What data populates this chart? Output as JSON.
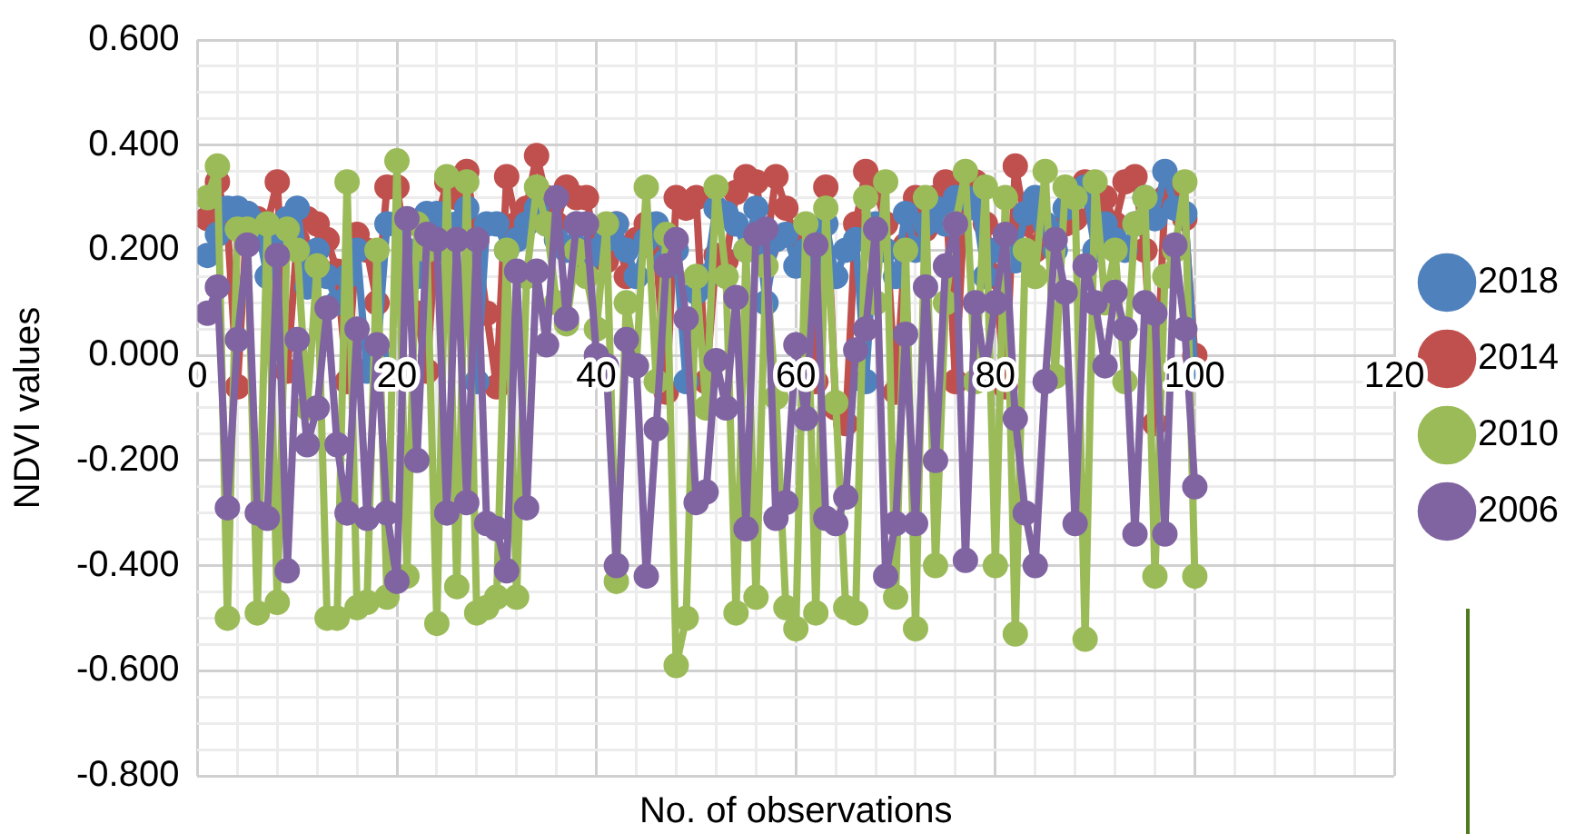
{
  "chart_data": {
    "type": "line",
    "xlabel": "No. of observations",
    "ylabel": "NDVI values",
    "x": [
      1,
      2,
      3,
      4,
      5,
      6,
      7,
      8,
      9,
      10,
      11,
      12,
      13,
      14,
      15,
      16,
      17,
      18,
      19,
      20,
      21,
      22,
      23,
      24,
      25,
      26,
      27,
      28,
      29,
      30,
      31,
      32,
      33,
      34,
      35,
      36,
      37,
      38,
      39,
      40,
      41,
      42,
      43,
      44,
      45,
      46,
      47,
      48,
      49,
      50,
      51,
      52,
      53,
      54,
      55,
      56,
      57,
      58,
      59,
      60,
      61,
      62,
      63,
      64,
      65,
      66,
      67,
      68,
      69,
      70,
      71,
      72,
      73,
      74,
      75,
      76,
      77,
      78,
      79,
      80,
      81,
      82,
      83,
      84,
      85,
      86,
      87,
      88,
      89,
      90,
      91,
      92,
      93,
      94,
      95,
      96,
      97,
      98,
      99,
      100
    ],
    "series": [
      {
        "name": "2018",
        "color": "#4f81bd",
        "values": [
          0.19,
          0.23,
          0.28,
          0.28,
          0.27,
          0.25,
          0.15,
          0.21,
          0.26,
          0.28,
          0.13,
          0.2,
          0.15,
          0.1,
          0.15,
          0.2,
          -0.03,
          0,
          0.25,
          0.25,
          0.2,
          0.15,
          0.27,
          0.27,
          0.2,
          0.25,
          0.28,
          -0.05,
          0.25,
          0.25,
          0.2,
          0.22,
          0.25,
          0.28,
          0.25,
          0.22,
          0.2,
          0.25,
          0.18,
          0.2,
          0.22,
          0.25,
          0.2,
          0.15,
          0.22,
          0.25,
          0.18,
          0.2,
          -0.05,
          0.12,
          0.15,
          0.28,
          0.27,
          0.25,
          0.2,
          0.28,
          0.1,
          0.22,
          0.23,
          0.17,
          0.2,
          0.17,
          0.25,
          0.15,
          0.2,
          0.22,
          -0.05,
          0.25,
          0.2,
          0.15,
          0.27,
          0.2,
          0.25,
          0.28,
          0.25,
          0.3,
          0.3,
          0.28,
          0.15,
          0.2,
          0.2,
          0.18,
          0.27,
          0.3,
          0.25,
          0.2,
          0.28,
          0.3,
          0.32,
          0.2,
          0.25,
          0.22,
          0.2,
          0.25,
          0.3,
          0.26,
          0.35,
          0.28,
          0.27,
          -0.03
        ]
      },
      {
        "name": "2014",
        "color": "#c0504d",
        "values": [
          0.26,
          0.33,
          0.25,
          -0.06,
          0.27,
          0.26,
          0.25,
          0.33,
          -0.03,
          0.22,
          0.26,
          0.25,
          0.22,
          0.16,
          -0.05,
          0.23,
          0.2,
          0.1,
          0.32,
          0.32,
          0.19,
          0.08,
          -0.03,
          0.25,
          0.33,
          0.3,
          0.35,
          0.22,
          0.08,
          -0.06,
          0.34,
          0.25,
          0.28,
          0.38,
          0.3,
          0.25,
          0.32,
          0.3,
          0.3,
          0.2,
          0.18,
          0.25,
          0.15,
          0.22,
          0.25,
          0.2,
          -0.07,
          0.3,
          0.28,
          0.3,
          -0.05,
          0.19,
          0.18,
          0.31,
          0.34,
          0.33,
          0.2,
          0.34,
          0.28,
          0.22,
          0.23,
          -0.05,
          0.32,
          -0.1,
          -0.13,
          0.25,
          0.35,
          0.32,
          0.25,
          -0.07,
          0.21,
          0.3,
          0.24,
          0.3,
          0.33,
          -0.05,
          0.32,
          0.33,
          0.25,
          0.15,
          -0.06,
          0.36,
          0.25,
          0.2,
          0.22,
          0.24,
          0.25,
          0.26,
          0.33,
          0.27,
          0.3,
          0.25,
          0.33,
          0.34,
          0.2,
          -0.13,
          0.3,
          0.32,
          0.26,
          0
        ]
      },
      {
        "name": "2010",
        "color": "#9bbb59",
        "values": [
          0.3,
          0.36,
          -0.5,
          0.24,
          0.24,
          -0.49,
          0.25,
          -0.47,
          0.24,
          0.2,
          -0.1,
          0.17,
          -0.5,
          -0.5,
          0.33,
          -0.48,
          -0.47,
          0.2,
          -0.46,
          0.37,
          -0.42,
          0.25,
          0.2,
          -0.51,
          0.34,
          -0.44,
          0.33,
          -0.49,
          -0.48,
          -0.46,
          0.2,
          -0.46,
          0.15,
          0.32,
          0.25,
          0.1,
          0.06,
          0.2,
          0.15,
          0.05,
          0.25,
          -0.43,
          0.1,
          -0.02,
          0.32,
          -0.05,
          0.23,
          -0.59,
          -0.5,
          0.15,
          -0.1,
          0.32,
          0.15,
          -0.49,
          0.2,
          -0.46,
          0.17,
          -0.08,
          -0.48,
          -0.52,
          0.25,
          -0.49,
          0.28,
          -0.09,
          -0.48,
          -0.49,
          0.3,
          0.1,
          0.33,
          -0.46,
          0.2,
          -0.52,
          0.3,
          -0.4,
          0.1,
          0.25,
          0.35,
          -0.05,
          0.32,
          -0.4,
          0.3,
          -0.53,
          0.2,
          0.15,
          0.35,
          -0.04,
          0.32,
          0.3,
          -0.54,
          0.33,
          0.1,
          0.2,
          -0.05,
          0.25,
          0.3,
          -0.42,
          0.15,
          0.2,
          0.33,
          -0.42
        ]
      },
      {
        "name": "2006",
        "color": "#8064a2",
        "values": [
          0.08,
          0.13,
          -0.29,
          0.03,
          0.21,
          -0.3,
          -0.31,
          0.19,
          -0.41,
          0.03,
          -0.17,
          -0.1,
          0.09,
          -0.17,
          -0.3,
          0.05,
          -0.31,
          0.02,
          -0.3,
          -0.43,
          0.26,
          -0.2,
          0.23,
          0.22,
          -0.3,
          0.22,
          -0.28,
          0.22,
          -0.32,
          -0.33,
          -0.41,
          0.16,
          -0.29,
          0.16,
          0.02,
          0.3,
          0.07,
          0.25,
          0.25,
          0,
          -0.02,
          -0.4,
          0.03,
          -0.02,
          -0.42,
          -0.14,
          0.17,
          0.22,
          0.07,
          -0.28,
          -0.26,
          -0.01,
          -0.1,
          0.11,
          -0.33,
          0.23,
          0.24,
          -0.31,
          -0.28,
          0.02,
          -0.12,
          0.21,
          -0.31,
          -0.32,
          -0.27,
          0.01,
          0.05,
          0.24,
          -0.42,
          -0.32,
          0.04,
          -0.32,
          0.13,
          -0.2,
          0.17,
          0.25,
          -0.39,
          0.1,
          -0.03,
          0.1,
          0.23,
          -0.12,
          -0.3,
          -0.4,
          -0.05,
          0.22,
          0.12,
          -0.32,
          0.17,
          0.1,
          -0.02,
          0.12,
          0.05,
          -0.34,
          0.1,
          0.08,
          -0.34,
          0.21,
          0.05,
          -0.25
        ]
      }
    ],
    "xlim": [
      0,
      120
    ],
    "xticks": [
      0,
      {
        "value": 4,
        "label": null
      },
      {
        "value": 8,
        "label": null
      },
      {
        "value": 12,
        "label": null
      },
      {
        "value": 16,
        "label": null
      },
      20,
      {
        "value": 24,
        "label": null
      },
      {
        "value": 28,
        "label": null
      },
      {
        "value": 32,
        "label": null
      },
      {
        "value": 36,
        "label": null
      },
      40,
      {
        "value": 44,
        "label": null
      },
      {
        "value": 48,
        "label": null
      },
      {
        "value": 52,
        "label": null
      },
      {
        "value": 56,
        "label": null
      },
      60,
      {
        "value": 64,
        "label": null
      },
      {
        "value": 68,
        "label": null
      },
      {
        "value": 72,
        "label": null
      },
      {
        "value": 76,
        "label": null
      },
      80,
      {
        "value": 84,
        "label": null
      },
      {
        "value": 88,
        "label": null
      },
      {
        "value": 92,
        "label": null
      },
      {
        "value": 96,
        "label": null
      },
      100,
      {
        "value": 104,
        "label": null
      },
      {
        "value": 108,
        "label": null
      },
      {
        "value": 112,
        "label": null
      },
      {
        "value": 116,
        "label": null
      },
      120
    ],
    "ylim": [
      -0.8,
      0.6
    ],
    "yticks": [
      {
        "value": -0.8,
        "label": "-0.800"
      },
      {
        "value": -0.75,
        "label": null
      },
      {
        "value": -0.7,
        "label": null
      },
      {
        "value": -0.65,
        "label": null
      },
      {
        "value": -0.6,
        "label": "-0.600"
      },
      {
        "value": -0.55,
        "label": null
      },
      {
        "value": -0.5,
        "label": null
      },
      {
        "value": -0.45,
        "label": null
      },
      {
        "value": -0.4,
        "label": "-0.400"
      },
      {
        "value": -0.35,
        "label": null
      },
      {
        "value": -0.3,
        "label": null
      },
      {
        "value": -0.25,
        "label": null
      },
      {
        "value": -0.2,
        "label": "-0.200"
      },
      {
        "value": -0.15,
        "label": null
      },
      {
        "value": -0.1,
        "label": null
      },
      {
        "value": -0.05,
        "label": null
      },
      {
        "value": 0,
        "label": "0.000"
      },
      {
        "value": 0.05,
        "label": null
      },
      {
        "value": 0.1,
        "label": null
      },
      {
        "value": 0.15,
        "label": null
      },
      {
        "value": 0.2,
        "label": "0.200"
      },
      {
        "value": 0.25,
        "label": null
      },
      {
        "value": 0.3,
        "label": null
      },
      {
        "value": 0.35,
        "label": null
      },
      {
        "value": 0.4,
        "label": "0.400"
      },
      {
        "value": 0.45,
        "label": null
      },
      {
        "value": 0.5,
        "label": null
      },
      {
        "value": 0.55,
        "label": null
      },
      {
        "value": 0.6,
        "label": "0.600"
      }
    ],
    "grid": true,
    "legend": "right",
    "marker": "circle",
    "line_style": "solid"
  }
}
